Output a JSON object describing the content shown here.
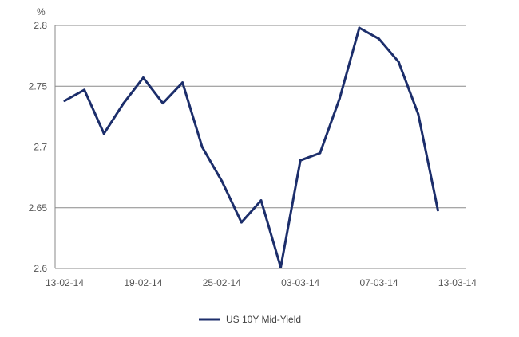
{
  "chart_data": {
    "type": "line",
    "title": "",
    "xlabel": "",
    "ylabel": "%",
    "ylim": [
      2.6,
      2.8
    ],
    "yticks": [
      "2.6",
      "2.65",
      "2.7",
      "2.75",
      "2.8"
    ],
    "xtick_labels": [
      "13-02-14",
      "19-02-14",
      "25-02-14",
      "03-03-14",
      "07-03-14",
      "13-03-14"
    ],
    "grid": "horizontal",
    "legend": "bottom-center",
    "series": [
      {
        "name": "US 10Y Mid-Yield",
        "color": "#1c2e6b",
        "x": [
          "13-02-14",
          "14-02-14",
          "17-02-14",
          "18-02-14",
          "19-02-14",
          "20-02-14",
          "21-02-14",
          "24-02-14",
          "25-02-14",
          "26-02-14",
          "27-02-14",
          "28-02-14",
          "03-03-14",
          "04-03-14",
          "05-03-14",
          "06-03-14",
          "07-03-14",
          "10-03-14",
          "11-03-14",
          "12-03-14",
          "13-03-14"
        ],
        "values": [
          2.738,
          2.747,
          2.711,
          2.736,
          2.757,
          2.736,
          2.753,
          2.7,
          2.672,
          2.638,
          2.656,
          2.601,
          2.689,
          2.695,
          2.74,
          2.798,
          2.789,
          2.77,
          2.727,
          2.648,
          null
        ]
      }
    ]
  }
}
